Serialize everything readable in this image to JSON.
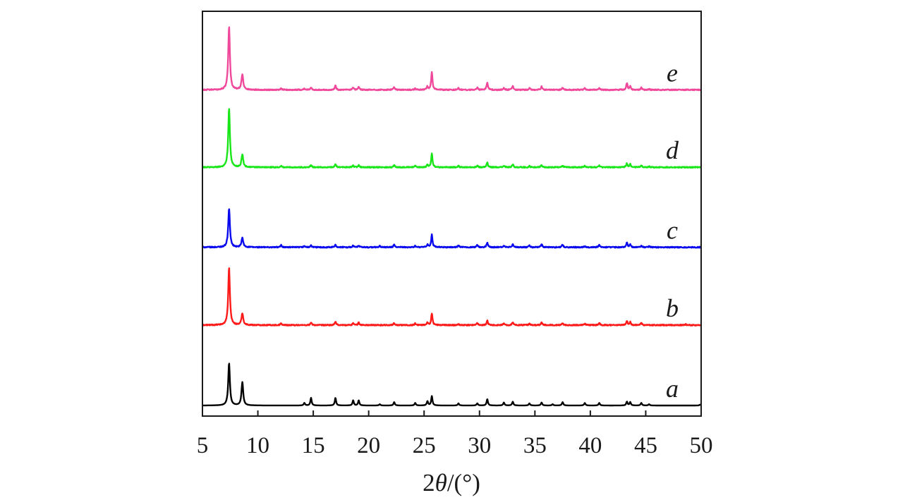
{
  "chart_data": {
    "type": "line",
    "title": "",
    "xlabel_prefix": "2",
    "xlabel_symbol": "θ",
    "xlabel_suffix": "/(°)",
    "ylabel": "",
    "xlim": [
      5,
      50
    ],
    "x_ticks": [
      5,
      10,
      15,
      20,
      25,
      30,
      35,
      40,
      45,
      50
    ],
    "x_tick_labels": [
      "5",
      "10",
      "15",
      "20",
      "25",
      "30",
      "35",
      "40",
      "45",
      "50"
    ],
    "grid": false,
    "legend": "inline-right",
    "series": [
      {
        "name": "a",
        "color": "#000000",
        "baseline": 0,
        "noise": 0,
        "peaks": [
          [
            7.4,
            100
          ],
          [
            8.6,
            55
          ],
          [
            14.2,
            6
          ],
          [
            14.8,
            18
          ],
          [
            17.0,
            18
          ],
          [
            18.6,
            12
          ],
          [
            19.1,
            12
          ],
          [
            21.0,
            3
          ],
          [
            22.3,
            8
          ],
          [
            24.2,
            6
          ],
          [
            25.3,
            10
          ],
          [
            25.7,
            22
          ],
          [
            28.1,
            5
          ],
          [
            29.8,
            5
          ],
          [
            30.7,
            15
          ],
          [
            32.2,
            7
          ],
          [
            33.0,
            9
          ],
          [
            34.5,
            5
          ],
          [
            35.6,
            7
          ],
          [
            36.6,
            3
          ],
          [
            37.5,
            8
          ],
          [
            39.5,
            6
          ],
          [
            40.8,
            6
          ],
          [
            43.3,
            9
          ],
          [
            43.6,
            8
          ],
          [
            44.6,
            6
          ],
          [
            45.3,
            3
          ],
          [
            49.9,
            2
          ]
        ]
      },
      {
        "name": "b",
        "color": "#ff1a1a",
        "baseline": 190,
        "noise": 1.2,
        "peaks": [
          [
            7.4,
            135
          ],
          [
            8.6,
            28
          ],
          [
            12.1,
            4
          ],
          [
            14.8,
            6
          ],
          [
            17.0,
            8
          ],
          [
            18.6,
            5
          ],
          [
            19.1,
            6
          ],
          [
            22.3,
            5
          ],
          [
            24.2,
            4
          ],
          [
            25.3,
            6
          ],
          [
            25.7,
            28
          ],
          [
            28.1,
            3
          ],
          [
            29.8,
            5
          ],
          [
            30.7,
            11
          ],
          [
            32.2,
            4
          ],
          [
            33.0,
            7
          ],
          [
            34.5,
            3
          ],
          [
            35.6,
            6
          ],
          [
            37.5,
            5
          ],
          [
            39.5,
            3
          ],
          [
            40.8,
            5
          ],
          [
            43.3,
            10
          ],
          [
            43.6,
            7
          ],
          [
            44.6,
            5
          ],
          [
            48.6,
            2
          ]
        ]
      },
      {
        "name": "c",
        "color": "#0a0aee",
        "baseline": 374,
        "noise": 1.2,
        "peaks": [
          [
            7.4,
            92
          ],
          [
            8.6,
            22
          ],
          [
            12.1,
            5
          ],
          [
            14.2,
            3
          ],
          [
            14.8,
            4
          ],
          [
            17.0,
            6
          ],
          [
            18.6,
            4
          ],
          [
            19.1,
            4
          ],
          [
            21.0,
            3
          ],
          [
            22.3,
            6
          ],
          [
            24.2,
            3
          ],
          [
            25.3,
            6
          ],
          [
            25.7,
            30
          ],
          [
            28.1,
            5
          ],
          [
            29.8,
            5
          ],
          [
            30.7,
            11
          ],
          [
            32.2,
            4
          ],
          [
            33.0,
            7
          ],
          [
            34.5,
            4
          ],
          [
            35.6,
            7
          ],
          [
            37.5,
            6
          ],
          [
            39.5,
            3
          ],
          [
            40.8,
            5
          ],
          [
            43.3,
            11
          ],
          [
            43.6,
            6
          ],
          [
            44.6,
            4
          ],
          [
            45.3,
            2
          ]
        ]
      },
      {
        "name": "d",
        "color": "#19e619",
        "baseline": 563,
        "noise": 1.2,
        "peaks": [
          [
            7.4,
            140
          ],
          [
            8.6,
            30
          ],
          [
            12.1,
            3
          ],
          [
            14.8,
            5
          ],
          [
            17.0,
            7
          ],
          [
            18.6,
            4
          ],
          [
            19.1,
            5
          ],
          [
            22.3,
            5
          ],
          [
            24.2,
            3
          ],
          [
            25.3,
            6
          ],
          [
            25.7,
            33
          ],
          [
            28.1,
            3
          ],
          [
            29.8,
            4
          ],
          [
            30.7,
            12
          ],
          [
            32.2,
            4
          ],
          [
            33.0,
            7
          ],
          [
            34.5,
            3
          ],
          [
            35.6,
            6
          ],
          [
            37.5,
            4
          ],
          [
            39.5,
            3
          ],
          [
            40.8,
            4
          ],
          [
            43.3,
            9
          ],
          [
            43.6,
            7
          ],
          [
            44.6,
            5
          ],
          [
            45.3,
            2
          ]
        ]
      },
      {
        "name": "e",
        "color": "#f0489a",
        "baseline": 746,
        "noise": 1.2,
        "peaks": [
          [
            7.4,
            150
          ],
          [
            8.6,
            37
          ],
          [
            12.1,
            3
          ],
          [
            14.2,
            3
          ],
          [
            14.8,
            6
          ],
          [
            17.0,
            10
          ],
          [
            18.6,
            5
          ],
          [
            19.1,
            7
          ],
          [
            22.3,
            7
          ],
          [
            24.2,
            3
          ],
          [
            25.3,
            8
          ],
          [
            25.7,
            43
          ],
          [
            28.1,
            4
          ],
          [
            29.8,
            5
          ],
          [
            30.7,
            18
          ],
          [
            32.2,
            4
          ],
          [
            33.0,
            9
          ],
          [
            34.5,
            4
          ],
          [
            35.6,
            8
          ],
          [
            37.5,
            5
          ],
          [
            39.5,
            4
          ],
          [
            40.8,
            4
          ],
          [
            43.3,
            16
          ],
          [
            43.6,
            8
          ],
          [
            44.6,
            5
          ],
          [
            45.3,
            2
          ]
        ]
      }
    ]
  }
}
